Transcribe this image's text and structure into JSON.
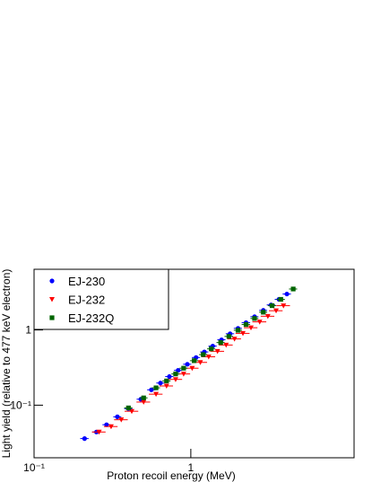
{
  "chart_data": {
    "type": "scatter",
    "x_label": "Proton recoil energy (MeV)",
    "y_label": "Light yield (relative to 477 keV electron)",
    "xlog": true,
    "ylog": true,
    "xlim": [
      0.1,
      11
    ],
    "ylim": [
      0.02,
      6.4
    ],
    "xticks": [
      {
        "value": 0.1,
        "label": "10⁻¹"
      },
      1
    ],
    "yticks": [
      {
        "value": 0.1,
        "label": "10⁻¹"
      },
      1
    ],
    "legend": "top-left",
    "series": [
      {
        "name": "EJ-230",
        "color": "#0000ff",
        "marker": "circle",
        "x": [
          0.21,
          0.25,
          0.29,
          0.34,
          0.4,
          0.48,
          0.56,
          0.64,
          0.73,
          0.83,
          0.95,
          1.08,
          1.22,
          1.38,
          1.57,
          1.78,
          2.0,
          2.25,
          2.55,
          2.9,
          3.25,
          3.65,
          4.1
        ],
        "values": [
          0.036,
          0.044,
          0.055,
          0.07,
          0.09,
          0.12,
          0.16,
          0.197,
          0.24,
          0.29,
          0.35,
          0.43,
          0.51,
          0.61,
          0.74,
          0.89,
          1.05,
          1.25,
          1.5,
          1.82,
          2.15,
          2.55,
          3.0
        ],
        "xerr": [
          0.013,
          0.015,
          0.017,
          0.02,
          0.024,
          0.029,
          0.034,
          0.038,
          0.044,
          0.05,
          0.057,
          0.065,
          0.073,
          0.083,
          0.094,
          0.11,
          0.12,
          0.14,
          0.15,
          0.17,
          0.2,
          0.22,
          0.25
        ]
      },
      {
        "name": "EJ-232",
        "color": "#ff0000",
        "marker": "triangle-down",
        "x": [
          0.26,
          0.31,
          0.36,
          0.42,
          0.5,
          0.6,
          0.7,
          0.8,
          0.9,
          1.02,
          1.15,
          1.3,
          1.48,
          1.68,
          1.9,
          2.15,
          2.42,
          2.75,
          3.1,
          3.5,
          3.9
        ],
        "values": [
          0.044,
          0.052,
          0.064,
          0.083,
          0.11,
          0.14,
          0.18,
          0.22,
          0.26,
          0.31,
          0.37,
          0.44,
          0.52,
          0.63,
          0.76,
          0.9,
          1.07,
          1.28,
          1.52,
          1.8,
          2.1
        ],
        "xerr": [
          0.026,
          0.031,
          0.036,
          0.042,
          0.05,
          0.06,
          0.07,
          0.08,
          0.09,
          0.1,
          0.12,
          0.13,
          0.15,
          0.17,
          0.19,
          0.22,
          0.24,
          0.28,
          0.31,
          0.35,
          0.39
        ]
      },
      {
        "name": "EJ-232Q",
        "color": "#006400",
        "marker": "square",
        "x": [
          0.4,
          0.5,
          0.6,
          0.7,
          0.8,
          0.9,
          1.05,
          1.2,
          1.35,
          1.55,
          1.75,
          2.0,
          2.25,
          2.55,
          2.9,
          3.3,
          3.75,
          4.5
        ],
        "values": [
          0.092,
          0.125,
          0.17,
          0.21,
          0.26,
          0.31,
          0.39,
          0.47,
          0.56,
          0.68,
          0.82,
          0.99,
          1.18,
          1.42,
          1.72,
          2.1,
          2.55,
          3.5
        ],
        "xerr": [
          0.024,
          0.03,
          0.036,
          0.042,
          0.048,
          0.054,
          0.063,
          0.072,
          0.081,
          0.093,
          0.11,
          0.12,
          0.14,
          0.15,
          0.17,
          0.2,
          0.23,
          0.27
        ]
      }
    ]
  }
}
